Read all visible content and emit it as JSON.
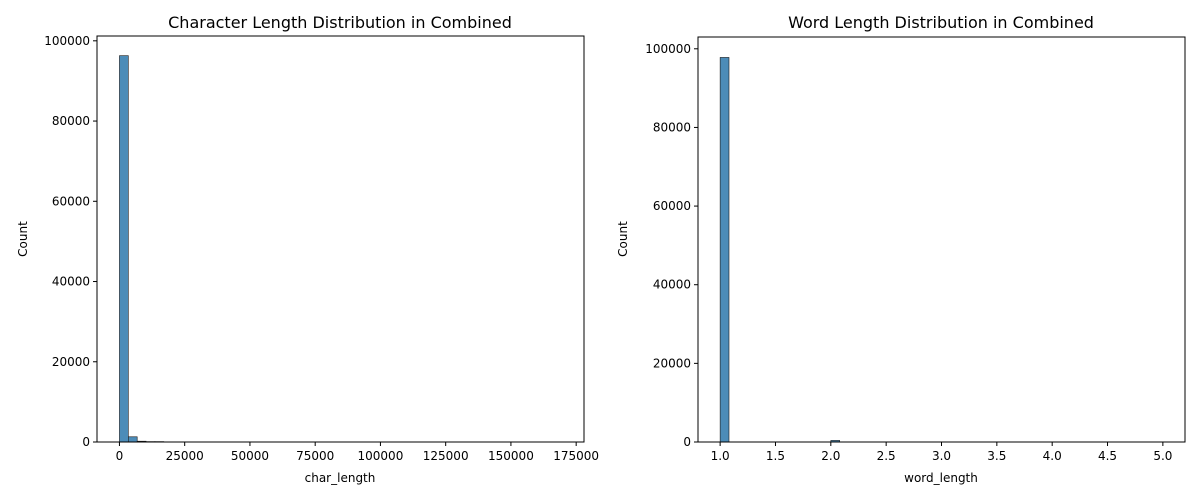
{
  "chart_data": [
    {
      "type": "bar",
      "title": "Character Length Distribution in Combined",
      "xlabel": "char_length",
      "ylabel": "Count",
      "xlim": [
        -8600,
        178000
      ],
      "ylim": [
        0,
        101200
      ],
      "xticks": [
        0,
        25000,
        50000,
        75000,
        100000,
        125000,
        150000,
        175000
      ],
      "xtick_labels": [
        "0",
        "25000",
        "50000",
        "75000",
        "100000",
        "125000",
        "150000",
        "175000"
      ],
      "yticks": [
        0,
        20000,
        40000,
        60000,
        80000,
        100000
      ],
      "ytick_labels": [
        "0",
        "20000",
        "40000",
        "60000",
        "80000",
        "100000"
      ],
      "bar_color": "#4c8cb8",
      "bin_edges": [
        0,
        3400,
        6800,
        10200,
        13600,
        17000
      ],
      "values": [
        96300,
        1300,
        200,
        100,
        100
      ],
      "grid": false
    },
    {
      "type": "bar",
      "title": "Word Length Distribution in Combined",
      "xlabel": "word_length",
      "ylabel": "Count",
      "xlim": [
        0.8,
        5.2
      ],
      "ylim": [
        0,
        103000
      ],
      "xticks": [
        1.0,
        1.5,
        2.0,
        2.5,
        3.0,
        3.5,
        4.0,
        4.5,
        5.0
      ],
      "xtick_labels": [
        "1.0",
        "1.5",
        "2.0",
        "2.5",
        "3.0",
        "3.5",
        "4.0",
        "4.5",
        "5.0"
      ],
      "yticks": [
        0,
        20000,
        40000,
        60000,
        80000,
        100000
      ],
      "ytick_labels": [
        "0",
        "20000",
        "40000",
        "60000",
        "80000",
        "100000"
      ],
      "bar_color": "#4c8cb8",
      "bin_edges": [
        1.0,
        1.08,
        1.92,
        2.0,
        2.08
      ],
      "values": [
        97800,
        0,
        0,
        400
      ],
      "grid": false
    }
  ]
}
